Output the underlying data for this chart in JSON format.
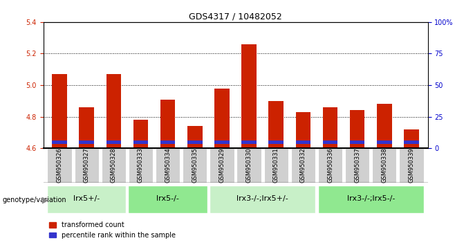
{
  "title": "GDS4317 / 10482052",
  "samples": [
    "GSM950326",
    "GSM950327",
    "GSM950328",
    "GSM950333",
    "GSM950334",
    "GSM950335",
    "GSM950329",
    "GSM950330",
    "GSM950331",
    "GSM950332",
    "GSM950336",
    "GSM950337",
    "GSM950338",
    "GSM950339"
  ],
  "red_values": [
    5.07,
    4.86,
    5.07,
    4.78,
    4.91,
    4.74,
    4.98,
    5.26,
    4.9,
    4.83,
    4.86,
    4.84,
    4.88,
    4.72
  ],
  "blue_bar_bottom": 4.625,
  "blue_bar_height": 0.022,
  "y_min": 4.6,
  "y_max": 5.4,
  "y_ticks": [
    4.6,
    4.8,
    5.0,
    5.2,
    5.4
  ],
  "right_y_ticks": [
    0,
    25,
    50,
    75,
    100
  ],
  "right_y_labels": [
    "0",
    "25",
    "50",
    "75",
    "100%"
  ],
  "groups": [
    {
      "label": "lrx5+/-",
      "start": 0,
      "end": 3,
      "color": "#c8f0c8"
    },
    {
      "label": "lrx5-/-",
      "start": 3,
      "end": 6,
      "color": "#90e890"
    },
    {
      "label": "lrx3-/-;lrx5+/-",
      "start": 6,
      "end": 10,
      "color": "#c8f0c8"
    },
    {
      "label": "lrx3-/-;lrx5-/-",
      "start": 10,
      "end": 14,
      "color": "#90e890"
    }
  ],
  "genotype_label": "genotype/variation",
  "legend_red": "transformed count",
  "legend_blue": "percentile rank within the sample",
  "bar_width": 0.55,
  "red_color": "#cc2200",
  "blue_color": "#3333cc",
  "tick_color_left": "#cc2200",
  "tick_color_right": "#0000cc",
  "sample_box_color": "#d0d0d0",
  "title_fontsize": 9,
  "legend_fontsize": 7,
  "tick_fontsize": 7,
  "sample_fontsize": 6,
  "group_fontsize": 8
}
